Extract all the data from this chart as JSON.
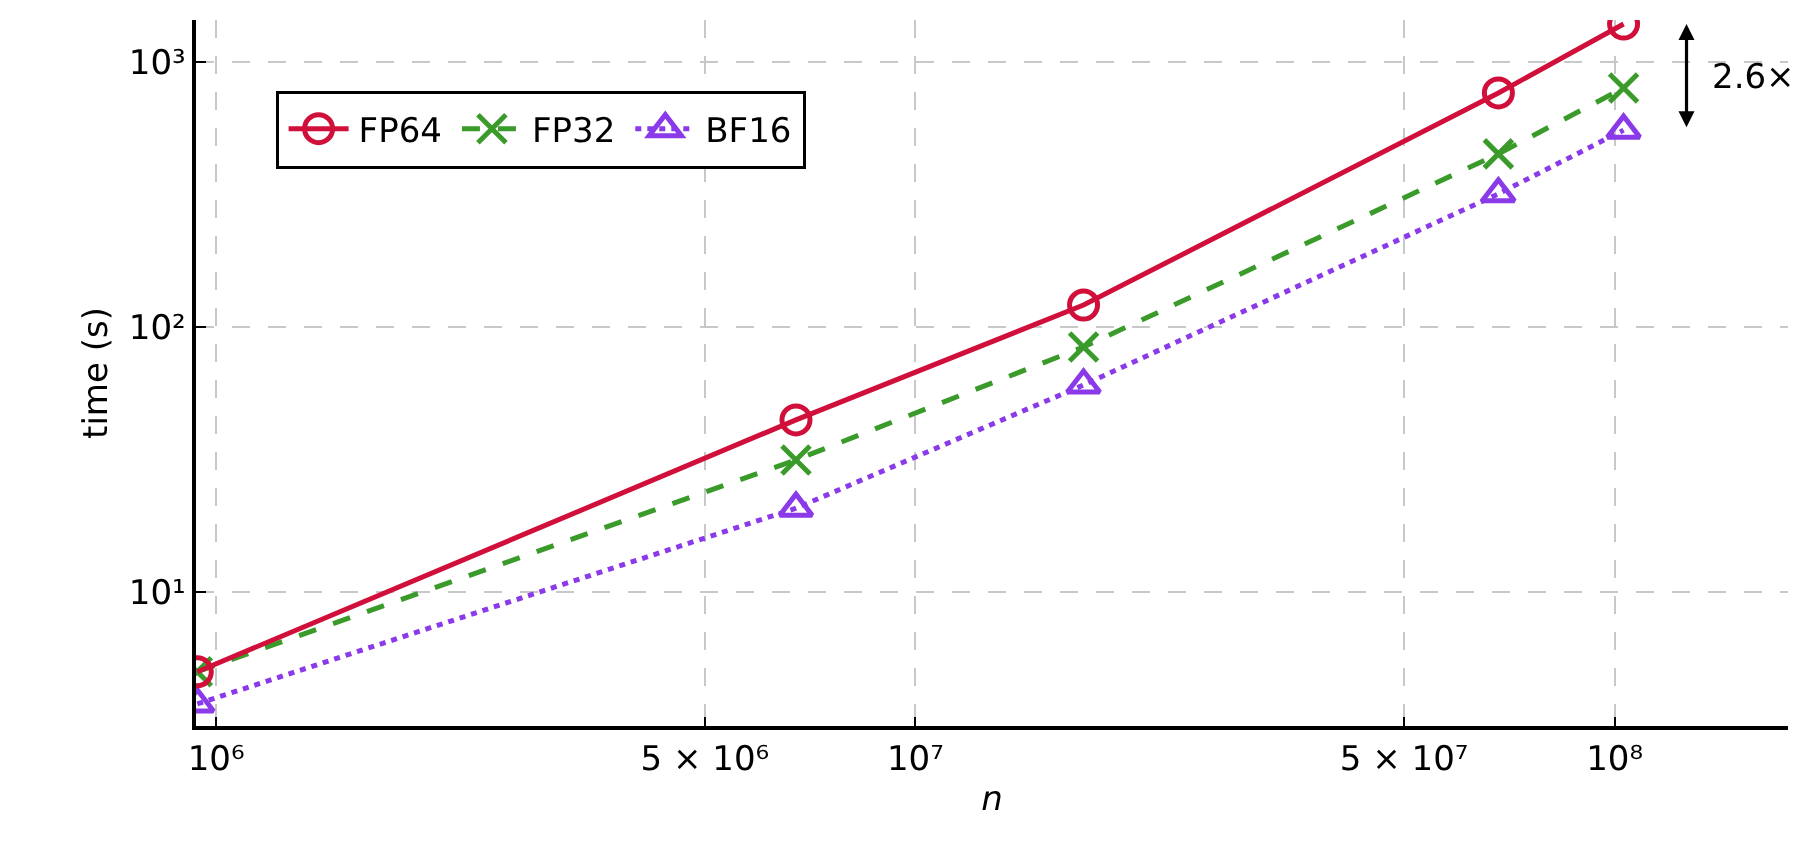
{
  "chart_data": {
    "type": "line",
    "xlabel": "n",
    "ylabel": "time (s)",
    "log": "xy",
    "grid": true,
    "legend": "top left",
    "x": [
      940000,
      6750000,
      17400000,
      68200000,
      103000000
    ],
    "xlim": [
      936000,
      177000000
    ],
    "ylim": [
      3.12,
      1440
    ],
    "xticks": [
      {
        "value": 1000000,
        "label": "10⁶"
      },
      {
        "value": 5000000,
        "label": "5 × 10⁶"
      },
      {
        "value": 10000000,
        "label": "10⁷"
      },
      {
        "value": 50000000,
        "label": "5 × 10⁷"
      },
      {
        "value": 100000000,
        "label": "10⁸"
      }
    ],
    "yticks": [
      {
        "value": 10,
        "label": "10¹"
      },
      {
        "value": 100,
        "label": "10²"
      },
      {
        "value": 1000,
        "label": "10³"
      }
    ],
    "series": [
      {
        "name": "FP64",
        "color": "#d0103a",
        "marker": "circle",
        "line_style": "solid",
        "values": [
          5.0,
          44.6,
          121,
          764,
          1390
        ]
      },
      {
        "name": "FP32",
        "color": "#3a9a2a",
        "marker": "cross",
        "line_style": "dashed",
        "values": [
          5.0,
          31.5,
          84,
          450,
          798
        ]
      },
      {
        "name": "BF16",
        "color": "#8a3ae8",
        "marker": "triangle",
        "line_style": "dotted",
        "values": [
          3.78,
          20.7,
          60.4,
          318,
          553
        ]
      }
    ],
    "annotations": [
      "2.6×"
    ]
  }
}
